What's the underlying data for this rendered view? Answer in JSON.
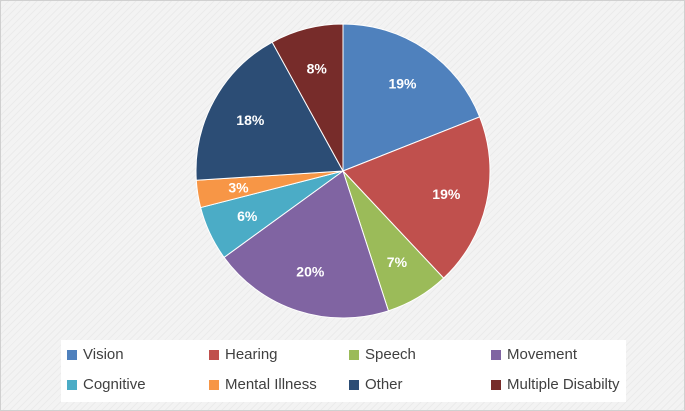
{
  "chart_data": {
    "type": "pie",
    "title": "",
    "categories": [
      "Vision",
      "Hearing",
      "Speech",
      "Movement",
      "Cognitive",
      "Mental Illness",
      "Other",
      "Multiple Disabilty"
    ],
    "values": [
      19,
      19,
      7,
      20,
      6,
      3,
      18,
      8
    ],
    "value_labels": [
      "19%",
      "19%",
      "7%",
      "20%",
      "6%",
      "3%",
      "18%",
      "8%"
    ],
    "colors": [
      "#4F81BD",
      "#C0504D",
      "#9BBB59",
      "#8064A2",
      "#4BACC6",
      "#F79646",
      "#2C4D75",
      "#772C2A"
    ],
    "legend_position": "bottom",
    "start": "12 o'clock, clockwise"
  }
}
